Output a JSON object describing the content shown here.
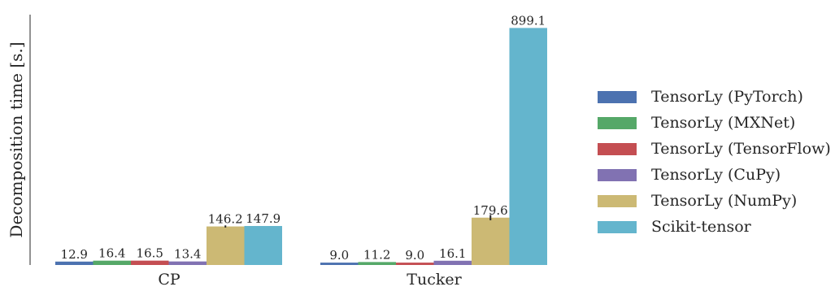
{
  "chart_data": {
    "type": "bar",
    "ylabel": "Decomposition time [s.]",
    "xlabel": "",
    "categories": [
      "CP",
      "Tucker"
    ],
    "ylim": [
      0,
      925
    ],
    "grid": false,
    "legend_position": "right",
    "value_format": 1,
    "series": [
      {
        "name": "TensorLy (PyTorch)",
        "color": "#4c72b0",
        "values": [
          12.9,
          9.0
        ],
        "errors": [
          0,
          0
        ]
      },
      {
        "name": "TensorLy (MXNet)",
        "color": "#55a868",
        "values": [
          16.4,
          11.2
        ],
        "errors": [
          0,
          0
        ]
      },
      {
        "name": "TensorLy (TensorFlow)",
        "color": "#c44e52",
        "values": [
          16.5,
          9.0
        ],
        "errors": [
          0,
          0
        ]
      },
      {
        "name": "TensorLy (CuPy)",
        "color": "#8172b2",
        "values": [
          13.4,
          16.1
        ],
        "errors": [
          0,
          0
        ]
      },
      {
        "name": "TensorLy (NumPy)",
        "color": "#ccb974",
        "values": [
          146.2,
          179.6
        ],
        "errors": [
          4,
          10
        ]
      },
      {
        "name": "Scikit-tensor",
        "color": "#64b5cd",
        "values": [
          147.9,
          899.1
        ],
        "errors": [
          0,
          0
        ]
      }
    ]
  }
}
